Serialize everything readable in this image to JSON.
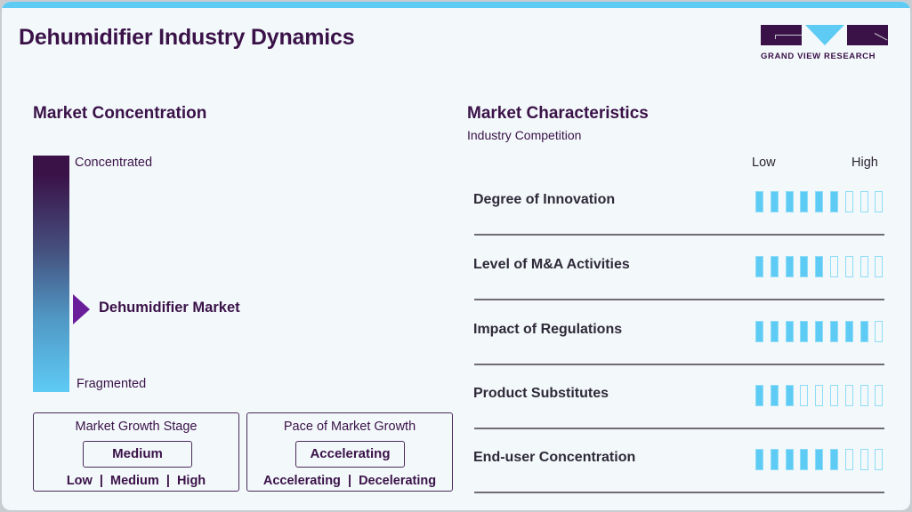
{
  "header": {
    "title": "Dehumidifier Industry Dynamics",
    "logo_text": "GRAND VIEW RESEARCH"
  },
  "colors": {
    "brand_dark": "#3a1248",
    "accent_blue": "#5ecbf5",
    "pointer_purple": "#6a1f9a",
    "background": "#f3f8fb"
  },
  "concentration": {
    "title": "Market Concentration",
    "top_label": "Concentrated",
    "bottom_label": "Fragmented",
    "marker_label": "Dehumidifier Market"
  },
  "growth_stage": {
    "title": "Market Growth Stage",
    "value": "Medium",
    "options": "Low  |  Medium  |  High"
  },
  "growth_pace": {
    "title": "Pace of Market Growth",
    "value": "Accelerating",
    "options": "Accelerating  |  Decelerating"
  },
  "characteristics": {
    "title": "Market Characteristics",
    "subtitle": "Industry Competition",
    "scale_low": "Low",
    "scale_high": "High",
    "total_bars": 9,
    "rows": [
      {
        "label": "Degree of Innovation",
        "filled": 6
      },
      {
        "label": "Level of M&A Activities",
        "filled": 5
      },
      {
        "label": "Impact of Regulations",
        "filled": 8
      },
      {
        "label": "Product Substitutes",
        "filled": 3
      },
      {
        "label": "End-user Concentration",
        "filled": 6
      }
    ]
  }
}
